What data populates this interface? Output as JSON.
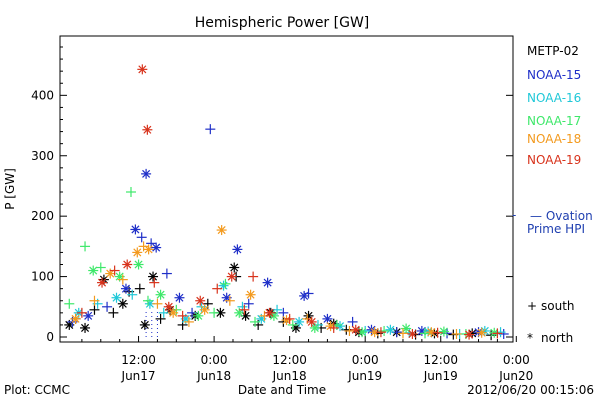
{
  "title": "Hemispheric Power [GW]",
  "footer": {
    "left": "Plot: CCMC",
    "right": "2012/06/20 00:15:06"
  },
  "legend": {
    "satellites": [
      {
        "name": "METP-02",
        "color": "#000000"
      },
      {
        "name": "NOAA-15",
        "color": "#1f2fc8"
      },
      {
        "name": "NOAA-16",
        "color": "#1fc8d8"
      },
      {
        "name": "NOAA-17",
        "color": "#3ee86a"
      },
      {
        "name": "NOAA-18",
        "color": "#f39a1e"
      },
      {
        "name": "NOAA-19",
        "color": "#d8331c"
      }
    ],
    "ovation_line1": "— Ovation",
    "ovation_line2": "Prime HPI",
    "ovation_color": "#1f3fb0",
    "markers": [
      {
        "symbol": "+",
        "label": "south"
      },
      {
        "symbol": "*",
        "label": "north"
      }
    ]
  },
  "chart_data": {
    "type": "scatter",
    "title": "Hemispheric Power [GW]",
    "xlabel": "Date and Time",
    "ylabel": "P [GW]",
    "ylim": [
      0,
      480
    ],
    "xlim_hours": [
      0,
      71
    ],
    "x_unit": "hours after 2012-06-16 00:00 UT",
    "yticks": [
      0,
      100,
      200,
      300,
      400
    ],
    "xticks": [
      {
        "hour": 12,
        "time": "12:00",
        "date": "Jun17"
      },
      {
        "hour": 24,
        "time": "0:00",
        "date": "Jun18"
      },
      {
        "hour": 36,
        "time": "12:00",
        "date": "Jun18"
      },
      {
        "hour": 48,
        "time": "0:00",
        "date": "Jun19"
      },
      {
        "hour": 60,
        "time": "12:00",
        "date": "Jun19"
      },
      {
        "hour": 72,
        "time": "0:00",
        "date": "Jun20"
      }
    ],
    "series": [
      {
        "name": "METP-02",
        "color": "#000000",
        "points": [
          {
            "x": 1,
            "y": 20,
            "m": "north"
          },
          {
            "x": 2,
            "y": 30,
            "m": "south"
          },
          {
            "x": 3.5,
            "y": 15,
            "m": "north"
          },
          {
            "x": 5,
            "y": 45,
            "m": "south"
          },
          {
            "x": 6.5,
            "y": 95,
            "m": "north"
          },
          {
            "x": 8,
            "y": 40,
            "m": "south"
          },
          {
            "x": 9.5,
            "y": 55,
            "m": "north"
          },
          {
            "x": 10.5,
            "y": 75,
            "m": "south"
          },
          {
            "x": 12.2,
            "y": 80,
            "m": "south"
          },
          {
            "x": 13,
            "y": 20,
            "m": "north"
          },
          {
            "x": 14.3,
            "y": 100,
            "m": "north"
          },
          {
            "x": 15.5,
            "y": 30,
            "m": "south"
          },
          {
            "x": 17,
            "y": 45,
            "m": "north"
          },
          {
            "x": 19,
            "y": 20,
            "m": "south"
          },
          {
            "x": 21,
            "y": 35,
            "m": "north"
          },
          {
            "x": 23,
            "y": 55,
            "m": "south"
          },
          {
            "x": 25,
            "y": 40,
            "m": "north"
          },
          {
            "x": 27.2,
            "y": 115,
            "m": "north"
          },
          {
            "x": 27.5,
            "y": 100,
            "m": "south"
          },
          {
            "x": 29,
            "y": 35,
            "m": "north"
          },
          {
            "x": 31,
            "y": 20,
            "m": "south"
          },
          {
            "x": 33,
            "y": 40,
            "m": "north"
          },
          {
            "x": 35,
            "y": 25,
            "m": "south"
          },
          {
            "x": 37,
            "y": 15,
            "m": "north"
          },
          {
            "x": 39,
            "y": 35,
            "m": "north"
          },
          {
            "x": 41,
            "y": 15,
            "m": "south"
          },
          {
            "x": 43,
            "y": 22,
            "m": "north"
          },
          {
            "x": 45,
            "y": 12,
            "m": "south"
          },
          {
            "x": 47,
            "y": 8,
            "m": "north"
          },
          {
            "x": 50,
            "y": 6,
            "m": "south"
          },
          {
            "x": 53,
            "y": 8,
            "m": "north"
          },
          {
            "x": 56,
            "y": 4,
            "m": "south"
          },
          {
            "x": 59,
            "y": 6,
            "m": "north"
          },
          {
            "x": 62,
            "y": 4,
            "m": "south"
          },
          {
            "x": 65,
            "y": 6,
            "m": "north"
          },
          {
            "x": 68,
            "y": 3,
            "m": "south"
          }
        ]
      },
      {
        "name": "NOAA-15",
        "color": "#1f2fc8",
        "points": [
          {
            "x": 1.5,
            "y": 25,
            "m": "south"
          },
          {
            "x": 4,
            "y": 35,
            "m": "north"
          },
          {
            "x": 7,
            "y": 50,
            "m": "south"
          },
          {
            "x": 10,
            "y": 80,
            "m": "north"
          },
          {
            "x": 11.5,
            "y": 178,
            "m": "north"
          },
          {
            "x": 12.5,
            "y": 165,
            "m": "south"
          },
          {
            "x": 13.2,
            "y": 270,
            "m": "north"
          },
          {
            "x": 14,
            "y": 155,
            "m": "south"
          },
          {
            "x": 14.8,
            "y": 148,
            "m": "north"
          },
          {
            "x": 16.5,
            "y": 105,
            "m": "south"
          },
          {
            "x": 18.5,
            "y": 65,
            "m": "north"
          },
          {
            "x": 20.5,
            "y": 40,
            "m": "south"
          },
          {
            "x": 23.4,
            "y": 344,
            "m": "south"
          },
          {
            "x": 26,
            "y": 65,
            "m": "north"
          },
          {
            "x": 27.7,
            "y": 145,
            "m": "north"
          },
          {
            "x": 29.5,
            "y": 55,
            "m": "south"
          },
          {
            "x": 32.5,
            "y": 90,
            "m": "north"
          },
          {
            "x": 35,
            "y": 40,
            "m": "south"
          },
          {
            "x": 38.3,
            "y": 68,
            "m": "north"
          },
          {
            "x": 39,
            "y": 72,
            "m": "south"
          },
          {
            "x": 42,
            "y": 30,
            "m": "north"
          },
          {
            "x": 46,
            "y": 25,
            "m": "south"
          },
          {
            "x": 49,
            "y": 12,
            "m": "north"
          },
          {
            "x": 53,
            "y": 8,
            "m": "south"
          },
          {
            "x": 57,
            "y": 10,
            "m": "north"
          },
          {
            "x": 61,
            "y": 6,
            "m": "south"
          },
          {
            "x": 66,
            "y": 8,
            "m": "north"
          },
          {
            "x": 70,
            "y": 5,
            "m": "south"
          }
        ]
      },
      {
        "name": "NOAA-16",
        "color": "#1fc8d8",
        "points": [
          {
            "x": 2.5,
            "y": 40,
            "m": "north"
          },
          {
            "x": 5.5,
            "y": 55,
            "m": "south"
          },
          {
            "x": 8.5,
            "y": 65,
            "m": "north"
          },
          {
            "x": 11,
            "y": 70,
            "m": "south"
          },
          {
            "x": 13.8,
            "y": 55,
            "m": "north"
          },
          {
            "x": 16,
            "y": 40,
            "m": "south"
          },
          {
            "x": 19.5,
            "y": 30,
            "m": "north"
          },
          {
            "x": 22,
            "y": 50,
            "m": "south"
          },
          {
            "x": 25.5,
            "y": 85,
            "m": "north"
          },
          {
            "x": 28.5,
            "y": 50,
            "m": "south"
          },
          {
            "x": 31.5,
            "y": 30,
            "m": "north"
          },
          {
            "x": 34,
            "y": 45,
            "m": "south"
          },
          {
            "x": 37.5,
            "y": 25,
            "m": "north"
          },
          {
            "x": 40.5,
            "y": 20,
            "m": "south"
          },
          {
            "x": 44,
            "y": 18,
            "m": "north"
          },
          {
            "x": 48,
            "y": 10,
            "m": "south"
          },
          {
            "x": 52,
            "y": 12,
            "m": "north"
          },
          {
            "x": 55,
            "y": 7,
            "m": "south"
          },
          {
            "x": 58,
            "y": 9,
            "m": "north"
          },
          {
            "x": 63,
            "y": 5,
            "m": "south"
          },
          {
            "x": 67,
            "y": 10,
            "m": "north"
          },
          {
            "x": 69.5,
            "y": 8,
            "m": "south"
          }
        ]
      },
      {
        "name": "NOAA-17",
        "color": "#3ee86a",
        "points": [
          {
            "x": 1,
            "y": 55,
            "m": "south"
          },
          {
            "x": 3.5,
            "y": 150,
            "m": "south"
          },
          {
            "x": 4.8,
            "y": 110,
            "m": "north"
          },
          {
            "x": 6,
            "y": 115,
            "m": "south"
          },
          {
            "x": 9,
            "y": 100,
            "m": "north"
          },
          {
            "x": 10.8,
            "y": 240,
            "m": "south"
          },
          {
            "x": 12,
            "y": 120,
            "m": "north"
          },
          {
            "x": 13.5,
            "y": 60,
            "m": "south"
          },
          {
            "x": 15.5,
            "y": 70,
            "m": "north"
          },
          {
            "x": 18,
            "y": 45,
            "m": "south"
          },
          {
            "x": 21.5,
            "y": 35,
            "m": "north"
          },
          {
            "x": 24,
            "y": 40,
            "m": "south"
          },
          {
            "x": 25.8,
            "y": 88,
            "m": "south"
          },
          {
            "x": 28,
            "y": 40,
            "m": "north"
          },
          {
            "x": 30.5,
            "y": 25,
            "m": "south"
          },
          {
            "x": 33.5,
            "y": 35,
            "m": "north"
          },
          {
            "x": 36.5,
            "y": 20,
            "m": "south"
          },
          {
            "x": 40,
            "y": 15,
            "m": "north"
          },
          {
            "x": 43.5,
            "y": 20,
            "m": "south"
          },
          {
            "x": 47.5,
            "y": 8,
            "m": "north"
          },
          {
            "x": 51,
            "y": 10,
            "m": "south"
          },
          {
            "x": 54.5,
            "y": 14,
            "m": "north"
          },
          {
            "x": 57.5,
            "y": 6,
            "m": "south"
          },
          {
            "x": 60.5,
            "y": 9,
            "m": "north"
          },
          {
            "x": 64,
            "y": 5,
            "m": "south"
          },
          {
            "x": 68.5,
            "y": 7,
            "m": "north"
          }
        ]
      },
      {
        "name": "NOAA-18",
        "color": "#f39a1e",
        "points": [
          {
            "x": 2,
            "y": 30,
            "m": "north"
          },
          {
            "x": 5,
            "y": 60,
            "m": "south"
          },
          {
            "x": 7.5,
            "y": 105,
            "m": "north"
          },
          {
            "x": 9.5,
            "y": 95,
            "m": "south"
          },
          {
            "x": 11.8,
            "y": 140,
            "m": "north"
          },
          {
            "x": 12.8,
            "y": 150,
            "m": "south"
          },
          {
            "x": 13.6,
            "y": 145,
            "m": "north"
          },
          {
            "x": 15,
            "y": 55,
            "m": "south"
          },
          {
            "x": 17.5,
            "y": 40,
            "m": "north"
          },
          {
            "x": 20,
            "y": 25,
            "m": "south"
          },
          {
            "x": 22.5,
            "y": 45,
            "m": "north"
          },
          {
            "x": 25.2,
            "y": 177,
            "m": "north"
          },
          {
            "x": 26.5,
            "y": 60,
            "m": "south"
          },
          {
            "x": 29.8,
            "y": 70,
            "m": "north"
          },
          {
            "x": 32,
            "y": 35,
            "m": "south"
          },
          {
            "x": 35.5,
            "y": 28,
            "m": "north"
          },
          {
            "x": 38.8,
            "y": 30,
            "m": "south"
          },
          {
            "x": 42.5,
            "y": 18,
            "m": "north"
          },
          {
            "x": 45.5,
            "y": 10,
            "m": "south"
          },
          {
            "x": 49.5,
            "y": 8,
            "m": "north"
          },
          {
            "x": 54,
            "y": 6,
            "m": "south"
          },
          {
            "x": 58.5,
            "y": 8,
            "m": "north"
          },
          {
            "x": 62.5,
            "y": 5,
            "m": "south"
          },
          {
            "x": 66.5,
            "y": 7,
            "m": "north"
          }
        ]
      },
      {
        "name": "NOAA-19",
        "color": "#d8331c",
        "points": [
          {
            "x": 3,
            "y": 40,
            "m": "south"
          },
          {
            "x": 6.2,
            "y": 90,
            "m": "north"
          },
          {
            "x": 8.2,
            "y": 110,
            "m": "south"
          },
          {
            "x": 10.2,
            "y": 120,
            "m": "north"
          },
          {
            "x": 12.6,
            "y": 443,
            "m": "north"
          },
          {
            "x": 13.4,
            "y": 343,
            "m": "north"
          },
          {
            "x": 14.5,
            "y": 90,
            "m": "south"
          },
          {
            "x": 16.8,
            "y": 50,
            "m": "north"
          },
          {
            "x": 19,
            "y": 35,
            "m": "south"
          },
          {
            "x": 21.8,
            "y": 60,
            "m": "north"
          },
          {
            "x": 24.5,
            "y": 80,
            "m": "south"
          },
          {
            "x": 26.8,
            "y": 100,
            "m": "north"
          },
          {
            "x": 28.8,
            "y": 45,
            "m": "south"
          },
          {
            "x": 30.2,
            "y": 100,
            "m": "south"
          },
          {
            "x": 32.8,
            "y": 40,
            "m": "north"
          },
          {
            "x": 36,
            "y": 30,
            "m": "south"
          },
          {
            "x": 39.5,
            "y": 25,
            "m": "north"
          },
          {
            "x": 43,
            "y": 15,
            "m": "south"
          },
          {
            "x": 46.5,
            "y": 12,
            "m": "north"
          },
          {
            "x": 50.5,
            "y": 8,
            "m": "south"
          },
          {
            "x": 55.5,
            "y": 5,
            "m": "north"
          },
          {
            "x": 59.5,
            "y": 7,
            "m": "south"
          },
          {
            "x": 64.5,
            "y": 4,
            "m": "north"
          },
          {
            "x": 69,
            "y": 6,
            "m": "south"
          }
        ]
      }
    ]
  }
}
